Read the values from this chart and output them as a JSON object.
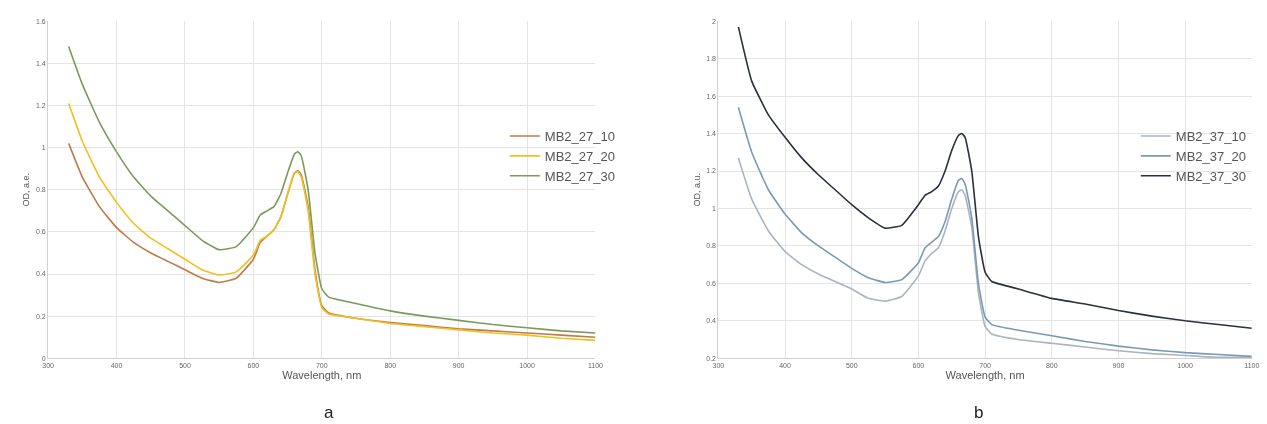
{
  "chart_data": [
    {
      "type": "line",
      "title": "a",
      "xlabel": "Wavelength, nm",
      "ylabel": "OD, a.e.",
      "xlim": [
        300,
        1100
      ],
      "xticks": [
        300,
        400,
        500,
        600,
        700,
        800,
        900,
        1000,
        1100
      ],
      "ylim": [
        0,
        1.6
      ],
      "yticks": [
        0,
        0.2,
        0.4,
        0.6,
        0.8,
        1,
        1.2,
        1.4,
        1.6
      ],
      "grid": true,
      "legend": "right",
      "line_style": "solid",
      "x": [
        330,
        350,
        375,
        400,
        425,
        450,
        475,
        500,
        525,
        550,
        575,
        600,
        610,
        620,
        630,
        640,
        650,
        660,
        665,
        670,
        680,
        690,
        700,
        710,
        750,
        800,
        850,
        900,
        950,
        1000,
        1050,
        1100
      ],
      "series": [
        {
          "name": "MB2_27_10",
          "color": "#c07a4a",
          "values": [
            1.02,
            0.86,
            0.72,
            0.62,
            0.55,
            0.5,
            0.46,
            0.42,
            0.38,
            0.36,
            0.38,
            0.47,
            0.55,
            0.58,
            0.61,
            0.67,
            0.78,
            0.88,
            0.89,
            0.87,
            0.72,
            0.42,
            0.25,
            0.215,
            0.19,
            0.17,
            0.155,
            0.14,
            0.13,
            0.12,
            0.11,
            0.1
          ]
        },
        {
          "name": "MB2_27_20",
          "color": "#f0c020",
          "values": [
            1.21,
            1.03,
            0.86,
            0.74,
            0.64,
            0.57,
            0.52,
            0.47,
            0.42,
            0.395,
            0.41,
            0.49,
            0.56,
            0.58,
            0.61,
            0.67,
            0.78,
            0.88,
            0.885,
            0.86,
            0.7,
            0.4,
            0.24,
            0.21,
            0.19,
            0.165,
            0.15,
            0.135,
            0.12,
            0.11,
            0.095,
            0.085
          ]
        },
        {
          "name": "MB2_27_30",
          "color": "#7a9a5a",
          "values": [
            1.48,
            1.3,
            1.12,
            0.98,
            0.86,
            0.77,
            0.7,
            0.63,
            0.56,
            0.515,
            0.53,
            0.62,
            0.68,
            0.7,
            0.72,
            0.78,
            0.88,
            0.97,
            0.98,
            0.96,
            0.8,
            0.5,
            0.33,
            0.29,
            0.26,
            0.225,
            0.2,
            0.18,
            0.16,
            0.145,
            0.13,
            0.12
          ]
        }
      ]
    },
    {
      "type": "line",
      "title": "b",
      "xlabel": "Wavelength, nm",
      "ylabel": "OD, a.u.",
      "xlim": [
        300,
        1100
      ],
      "xticks": [
        300,
        400,
        500,
        600,
        700,
        800,
        900,
        1000,
        1100
      ],
      "ylim": [
        0.2,
        2
      ],
      "yticks": [
        0.2,
        0.4,
        0.6,
        0.8,
        1,
        1.2,
        1.4,
        1.6,
        1.8,
        2
      ],
      "grid": true,
      "legend": "right",
      "line_style": "solid",
      "x": [
        330,
        350,
        375,
        400,
        425,
        450,
        475,
        500,
        525,
        550,
        575,
        600,
        610,
        620,
        630,
        640,
        650,
        660,
        665,
        670,
        680,
        690,
        700,
        710,
        750,
        800,
        850,
        900,
        950,
        1000,
        1050,
        1100
      ],
      "series": [
        {
          "name": "MB2_37_10",
          "color": "#a8b4c0",
          "values": [
            1.27,
            1.05,
            0.88,
            0.77,
            0.7,
            0.65,
            0.61,
            0.57,
            0.52,
            0.505,
            0.53,
            0.64,
            0.72,
            0.76,
            0.79,
            0.88,
            1.0,
            1.09,
            1.1,
            1.07,
            0.9,
            0.55,
            0.37,
            0.33,
            0.3,
            0.28,
            0.26,
            0.24,
            0.225,
            0.215,
            0.205,
            0.205
          ]
        },
        {
          "name": "MB2_37_20",
          "color": "#7a9ab4",
          "values": [
            1.54,
            1.3,
            1.1,
            0.97,
            0.87,
            0.8,
            0.74,
            0.68,
            0.63,
            0.605,
            0.62,
            0.71,
            0.79,
            0.82,
            0.85,
            0.93,
            1.05,
            1.15,
            1.16,
            1.13,
            0.95,
            0.6,
            0.42,
            0.38,
            0.35,
            0.32,
            0.29,
            0.265,
            0.245,
            0.23,
            0.22,
            0.21
          ]
        },
        {
          "name": "MB2_37_30",
          "color": "#2a3040",
          "values": [
            1.97,
            1.68,
            1.5,
            1.38,
            1.27,
            1.18,
            1.1,
            1.02,
            0.95,
            0.895,
            0.91,
            1.02,
            1.07,
            1.09,
            1.12,
            1.2,
            1.31,
            1.39,
            1.4,
            1.38,
            1.2,
            0.85,
            0.66,
            0.61,
            0.57,
            0.52,
            0.49,
            0.455,
            0.425,
            0.4,
            0.38,
            0.36
          ]
        }
      ]
    }
  ]
}
